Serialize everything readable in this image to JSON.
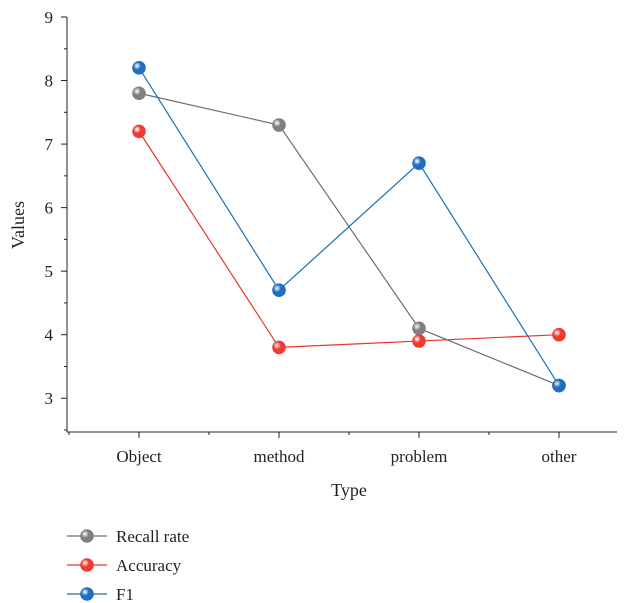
{
  "chart_data": {
    "type": "line",
    "categories": [
      "Object",
      "method",
      "problem",
      "other"
    ],
    "series": [
      {
        "name": "Recall rate",
        "values": [
          7.8,
          7.3,
          4.1,
          3.2
        ],
        "color": "#6e6e6e",
        "marker": "#7f7f7f"
      },
      {
        "name": "Accuracy",
        "values": [
          7.2,
          3.8,
          3.9,
          4.0
        ],
        "color": "#e8372f",
        "marker": "#ee3a33"
      },
      {
        "name": "F1",
        "values": [
          8.2,
          4.7,
          6.7,
          3.2
        ],
        "color": "#1a6fb8",
        "marker": "#1e6fbf"
      }
    ],
    "xlabel": "Type",
    "ylabel": "Values",
    "ylim": [
      2.5,
      9
    ],
    "yticks": [
      3,
      4,
      5,
      6,
      7,
      8,
      9
    ],
    "grid": false,
    "legend_position": "bottom-left"
  }
}
